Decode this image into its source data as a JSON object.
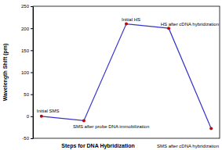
{
  "chart_data": {
    "type": "line",
    "x_label": "Steps for DNA Hybridization",
    "y_label": "Wavelength Shift (pm)",
    "categories": [
      "Initial SMS",
      "SMS after probe DNA immobilization",
      "Initial HS",
      "HS after cDNA hybridization",
      "SMS after cDNA hybridization"
    ],
    "values": [
      0,
      -10,
      210,
      200,
      -28
    ],
    "color": "#3333cc",
    "marker": "circle",
    "ylim": [
      -50,
      250
    ],
    "yticks": [
      -50,
      0,
      50,
      100,
      150,
      200,
      250
    ],
    "grid": false,
    "tick_labels": "y"
  }
}
